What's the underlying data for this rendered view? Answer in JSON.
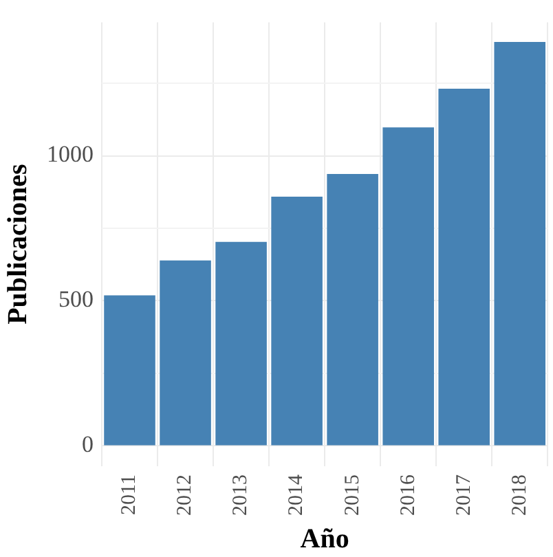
{
  "chart_data": {
    "type": "bar",
    "xlabel": "Año",
    "ylabel": "Publicaciones",
    "categories": [
      "2011",
      "2012",
      "2013",
      "2014",
      "2015",
      "2016",
      "2017",
      "2018"
    ],
    "values": [
      519,
      639,
      703,
      859,
      937,
      1098,
      1231,
      1392
    ],
    "color": "#4682b4",
    "ylim": [
      -70,
      1460
    ],
    "yticks": [
      0,
      {
        "value": 250,
        "label": null
      },
      500,
      {
        "value": 750,
        "label": null
      },
      1000,
      {
        "value": 1250,
        "label": null
      }
    ],
    "grid": true,
    "legend": false
  }
}
